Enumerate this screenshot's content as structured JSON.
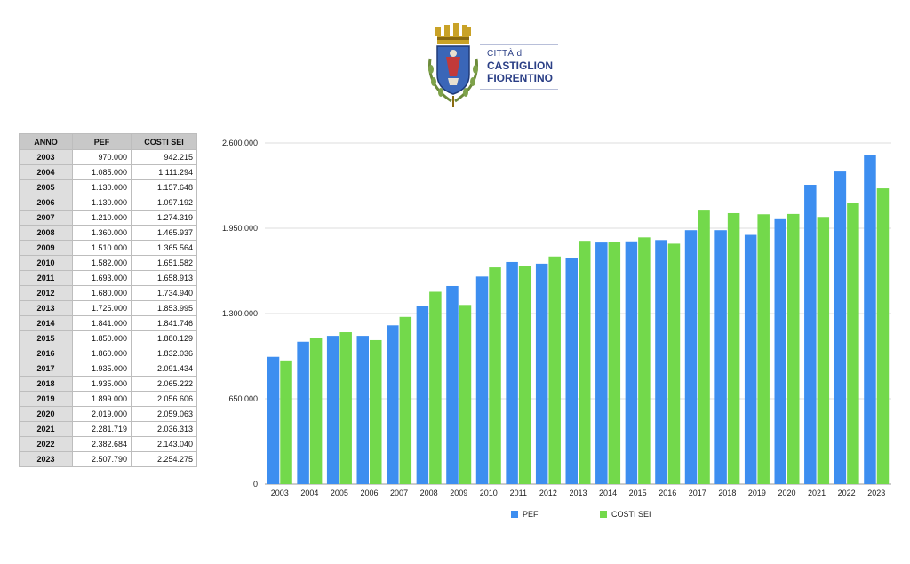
{
  "logo": {
    "line1": "CITTÀ di",
    "line2": "CASTIGLION",
    "line3": "FIORENTINO"
  },
  "table": {
    "headers": [
      "ANNO",
      "PEF",
      "COSTI SEI"
    ],
    "rows": [
      [
        "2003",
        "970.000",
        "942.215"
      ],
      [
        "2004",
        "1.085.000",
        "1.111.294"
      ],
      [
        "2005",
        "1.130.000",
        "1.157.648"
      ],
      [
        "2006",
        "1.130.000",
        "1.097.192"
      ],
      [
        "2007",
        "1.210.000",
        "1.274.319"
      ],
      [
        "2008",
        "1.360.000",
        "1.465.937"
      ],
      [
        "2009",
        "1.510.000",
        "1.365.564"
      ],
      [
        "2010",
        "1.582.000",
        "1.651.582"
      ],
      [
        "2011",
        "1.693.000",
        "1.658.913"
      ],
      [
        "2012",
        "1.680.000",
        "1.734.940"
      ],
      [
        "2013",
        "1.725.000",
        "1.853.995"
      ],
      [
        "2014",
        "1.841.000",
        "1.841.746"
      ],
      [
        "2015",
        "1.850.000",
        "1.880.129"
      ],
      [
        "2016",
        "1.860.000",
        "1.832.036"
      ],
      [
        "2017",
        "1.935.000",
        "2.091.434"
      ],
      [
        "2018",
        "1.935.000",
        "2.065.222"
      ],
      [
        "2019",
        "1.899.000",
        "2.056.606"
      ],
      [
        "2020",
        "2.019.000",
        "2.059.063"
      ],
      [
        "2021",
        "2.281.719",
        "2.036.313"
      ],
      [
        "2022",
        "2.382.684",
        "2.143.040"
      ],
      [
        "2023",
        "2.507.790",
        "2.254.275"
      ]
    ]
  },
  "chart_data": {
    "type": "bar",
    "categories": [
      "2003",
      "2004",
      "2005",
      "2006",
      "2007",
      "2008",
      "2009",
      "2010",
      "2011",
      "2012",
      "2013",
      "2014",
      "2015",
      "2016",
      "2017",
      "2018",
      "2019",
      "2020",
      "2021",
      "2022",
      "2023"
    ],
    "series": [
      {
        "name": "PEF",
        "color": "#3d8ef0",
        "values": [
          970000,
          1085000,
          1130000,
          1130000,
          1210000,
          1360000,
          1510000,
          1582000,
          1693000,
          1680000,
          1725000,
          1841000,
          1850000,
          1860000,
          1935000,
          1935000,
          1899000,
          2019000,
          2281719,
          2382684,
          2507790
        ]
      },
      {
        "name": "COSTI SEI",
        "color": "#73d94b",
        "values": [
          942215,
          1111294,
          1157648,
          1097192,
          1274319,
          1465937,
          1365564,
          1651582,
          1658913,
          1734940,
          1853995,
          1841746,
          1880129,
          1832036,
          2091434,
          2065222,
          2056606,
          2059063,
          2036313,
          2143040,
          2254275
        ]
      }
    ],
    "y_ticks": [
      0,
      650000,
      1300000,
      1950000,
      2600000
    ],
    "y_tick_labels": [
      "0",
      "650.000",
      "1.300.000",
      "1.950.000",
      "2.600.000"
    ],
    "ylim": [
      0,
      2600000
    ],
    "grid": true,
    "legend_position": "bottom"
  }
}
